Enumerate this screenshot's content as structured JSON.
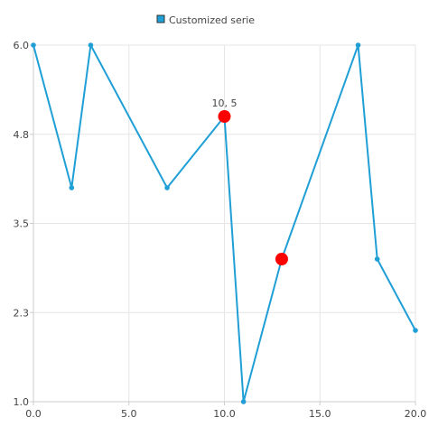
{
  "chart_data": {
    "type": "line",
    "title": "",
    "xlabel": "",
    "ylabel": "",
    "xlim": [
      0,
      20
    ],
    "ylim": [
      1,
      6
    ],
    "grid": true,
    "legend": {
      "position": "top-center"
    },
    "x_ticks": [
      "0.0",
      "5.0",
      "10.0",
      "15.0",
      "20.0"
    ],
    "x_tick_values": [
      0,
      5,
      10,
      15,
      20
    ],
    "y_ticks": [
      "1.0",
      "2.3",
      "3.5",
      "4.8",
      "6.0"
    ],
    "y_tick_values": [
      1,
      2.25,
      3.5,
      4.75,
      6
    ],
    "series": [
      {
        "name": "Customized serie",
        "color": "#1f9fd6",
        "x": [
          0,
          2,
          3,
          7,
          10,
          11,
          13,
          17,
          18,
          20
        ],
        "y": [
          6,
          4,
          6,
          4,
          5,
          1,
          3,
          6,
          3,
          2
        ]
      }
    ],
    "highlighted_points": [
      {
        "x": 10,
        "y": 5,
        "color": "#ff0000",
        "label": "10, 5"
      },
      {
        "x": 13,
        "y": 3,
        "color": "#ff0000",
        "label": ""
      }
    ]
  }
}
